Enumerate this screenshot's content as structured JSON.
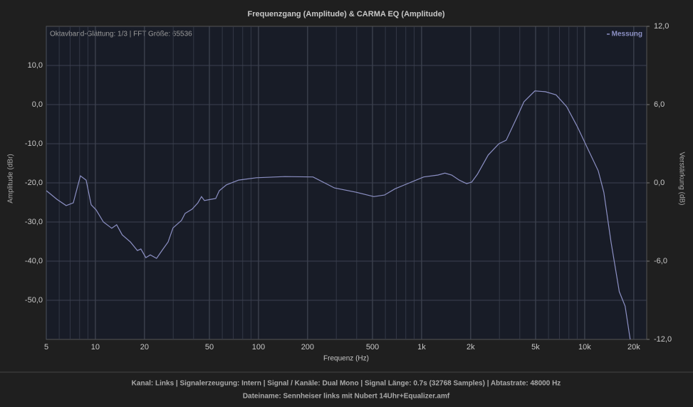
{
  "chart_data": {
    "type": "line",
    "title": "Frequenzgang (Amplitude) & CARMA EQ (Amplitude)",
    "annotation": "Oktavband-Glättung: 1/3 | FFT Größe: 65536",
    "xlabel": "Frequenz (Hz)",
    "ylabel": "Amplitude (dBr)",
    "y2label": "Verstärkung (dB)",
    "xscale": "log",
    "xlim": [
      5,
      24000
    ],
    "xticks": [
      5,
      10,
      20,
      50,
      100,
      200,
      500,
      {
        "value": 1000,
        "label": "1k"
      },
      {
        "value": 2000,
        "label": "2k"
      },
      {
        "value": 5000,
        "label": "5k"
      },
      {
        "value": 10000,
        "label": "10k"
      },
      {
        "value": 20000,
        "label": "20k"
      }
    ],
    "xminor_ticks": [
      6,
      7,
      8,
      9,
      30,
      40,
      60,
      70,
      80,
      90,
      300,
      400,
      600,
      700,
      800,
      900,
      3000,
      4000,
      6000,
      7000,
      8000,
      9000
    ],
    "ylim": [
      -60,
      20
    ],
    "yticks": [
      {
        "value": -50,
        "label": "-50,0"
      },
      {
        "value": -40,
        "label": "-40,0"
      },
      {
        "value": -30,
        "label": "-30,0"
      },
      {
        "value": -20,
        "label": "-20,0"
      },
      {
        "value": -10,
        "label": "-10,0"
      },
      {
        "value": 0,
        "label": "0,0"
      },
      {
        "value": 10,
        "label": "10,0"
      }
    ],
    "y2lim": [
      -12,
      12
    ],
    "y2ticks": [
      {
        "value": -12,
        "label": "-12,0"
      },
      {
        "value": -6,
        "label": "-6,0"
      },
      {
        "value": 0,
        "label": "0,0"
      },
      {
        "value": 6,
        "label": "6,0"
      },
      {
        "value": 12,
        "label": "12,0"
      }
    ],
    "grid": true,
    "legend": "top-right",
    "x": [
      5,
      5.25,
      5.81,
      6.62,
      7.32,
      8.09,
      8.77,
      9.42,
      10.1,
      11.2,
      12.6,
      13.5,
      14.6,
      16.4,
      18.1,
      19.0,
      20.4,
      21.7,
      23.7,
      26.0,
      27.9,
      29.9,
      33.7,
      35.5,
      39.2,
      42.5,
      44.7,
      46.6,
      51.0,
      54.7,
      57.5,
      63.6,
      75.5,
      97,
      145,
      216,
      292,
      397,
      509,
      592,
      688,
      842,
      1030,
      1260,
      1390,
      1530,
      1700,
      1890,
      2030,
      2200,
      2560,
      2980,
      3300,
      3840,
      4240,
      4950,
      5740,
      6670,
      7750,
      9000,
      10400,
      12100,
      13100,
      14500,
      16300,
      17700,
      19000
    ],
    "series": [
      {
        "name": "Messung",
        "color": "#8c90c4",
        "values": [
          -22,
          -22.7,
          -24.2,
          -25.8,
          -25.1,
          -18.2,
          -19.3,
          -25.6,
          -26.9,
          -30,
          -31.6,
          -30.7,
          -33.3,
          -35.1,
          -37.3,
          -36.9,
          -39.1,
          -38.4,
          -39.3,
          -36.9,
          -35.1,
          -31.5,
          -29.6,
          -27.8,
          -26.7,
          -25.1,
          -23.5,
          -24.5,
          -24.2,
          -24,
          -22,
          -20.5,
          -19.3,
          -18.7,
          -18.4,
          -18.5,
          -21.3,
          -22.4,
          -23.5,
          -23.1,
          -21.5,
          -20,
          -18.5,
          -18,
          -17.5,
          -18,
          -19.3,
          -20.2,
          -19.8,
          -17.8,
          -12.9,
          -10,
          -9.1,
          -3.3,
          0.7,
          3.5,
          3.3,
          2.5,
          -0.5,
          -5.6,
          -11.1,
          -16.9,
          -22.4,
          -35.1,
          -47.8,
          -51.5,
          -60
        ]
      }
    ],
    "footer": [
      "Kanal: Links  |  Signalerzeugung: Intern  |  Signal / Kanäle: Dual Mono  |  Signal Länge: 0.7s (32768 Samples)  |  Abtastrate: 48000 Hz",
      "Dateiname: Sennheiser links mit Nubert 14Uhr+Equalizer.amf"
    ]
  }
}
